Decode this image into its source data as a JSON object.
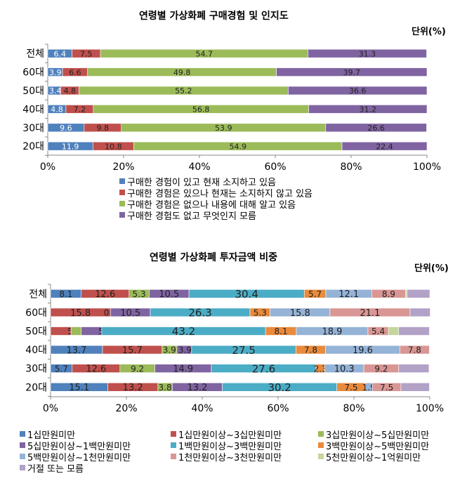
{
  "chart_data": [
    {
      "type": "bar",
      "orientation": "horizontal",
      "stacked": true,
      "title": "연령별 가상화폐 구매경험 및 인지도",
      "unit_label": "단위(%)",
      "categories": [
        "전체",
        "60대",
        "50대",
        "40대",
        "30대",
        "20대"
      ],
      "xlim": [
        0,
        100
      ],
      "x_ticks": [
        "0%",
        "20%",
        "40%",
        "60%",
        "80%",
        "100%"
      ],
      "grid": false,
      "legend_position": "bottom",
      "series": [
        {
          "name": "구매한 경험이 있고 현재 소지하고 있음",
          "color": "#4f81bd",
          "values": [
            6.4,
            3.9,
            3.4,
            4.8,
            9.6,
            11.9
          ],
          "labels": [
            "6.4",
            "3.9",
            "3.4",
            "4.8",
            "9.6",
            "11.9"
          ]
        },
        {
          "name": "구매한 경험은 있으나 현재는 소지하지 않고 있음",
          "color": "#c0504d",
          "values": [
            7.5,
            6.6,
            4.8,
            7.2,
            9.8,
            10.8
          ],
          "labels": [
            "7.5",
            "6.6",
            "4.8",
            "7.2",
            "9.8",
            "10.8"
          ]
        },
        {
          "name": "구매한 경험은 없으나 내용에 대해 알고 있음",
          "color": "#9bbb59",
          "values": [
            54.7,
            49.8,
            55.2,
            56.8,
            53.9,
            54.9
          ],
          "labels": [
            "54.7",
            "49.8",
            "55.2",
            "56.8",
            "53.9",
            "54.9"
          ]
        },
        {
          "name": "구매한 경험도 없고 무엇인지 모름",
          "color": "#8064a2",
          "values": [
            31.3,
            39.7,
            36.6,
            31.2,
            26.6,
            22.4
          ],
          "labels": [
            "31.3",
            "39.7",
            "36.6",
            "31.2",
            "26.6",
            "22.4"
          ]
        }
      ]
    },
    {
      "type": "bar",
      "orientation": "horizontal",
      "stacked": true,
      "title": "연령별 가상화폐 투자금액 비중",
      "unit_label": "단위(%)",
      "categories": [
        "전체",
        "60대",
        "50대",
        "40대",
        "30대",
        "20대"
      ],
      "xlim": [
        0,
        100
      ],
      "x_ticks": [
        "0%",
        "20%",
        "40%",
        "60%",
        "80%",
        "100%"
      ],
      "grid": false,
      "legend_position": "bottom",
      "series": [
        {
          "name": "1십만원미만",
          "color": "#4f81bd",
          "values": [
            8.1,
            0.0,
            0.0,
            13.7,
            5.7,
            15.1
          ],
          "labels": [
            "8.1",
            "0.0",
            "0.0",
            "13.7",
            "5.7",
            "15.1"
          ]
        },
        {
          "name": "1십만원이상~3십만원미만",
          "color": "#c0504d",
          "values": [
            12.6,
            15.8,
            5.4,
            15.7,
            12.6,
            13.2
          ],
          "labels": [
            "12.6",
            "15.8",
            "5.4",
            "15.7",
            "12.6",
            "13.2"
          ]
        },
        {
          "name": "3십만원이상~5십만원미만",
          "color": "#9bbb59",
          "values": [
            5.3,
            0.0,
            2.7,
            3.9,
            9.2,
            3.8
          ],
          "labels": [
            "5.3",
            "0.0",
            "2.7",
            "3.9",
            "9.2",
            "3.8"
          ]
        },
        {
          "name": "5십만원이상~1백만원미만",
          "color": "#8064a2",
          "values": [
            10.5,
            10.5,
            5.4,
            3.9,
            14.9,
            13.2
          ],
          "labels": [
            "10.5",
            "10.5",
            "5.4",
            "3.9",
            "14.9",
            "13.2"
          ]
        },
        {
          "name": "1백만원이상~3백만원미만",
          "color": "#4bacc6",
          "values": [
            30.4,
            26.3,
            43.2,
            27.5,
            27.6,
            30.2
          ],
          "labels": [
            "30.4",
            "26.3",
            "43.2",
            "27.5",
            "27.6",
            "30.2"
          ]
        },
        {
          "name": "3백만원이상~5백만원미만",
          "color": "#e98a3c",
          "values": [
            5.7,
            5.3,
            8.1,
            7.8,
            2.3,
            7.5
          ],
          "labels": [
            "5.7",
            "5.3",
            "8.1",
            "7.8",
            "2.3",
            "7.5"
          ]
        },
        {
          "name": "5백만원이상~1천만원미만",
          "color": "#95b3d7",
          "values": [
            12.1,
            15.8,
            18.9,
            19.6,
            10.3,
            1.9
          ],
          "labels": [
            "12.1",
            "15.8",
            "18.9",
            "19.6",
            "10.3",
            "1.9"
          ]
        },
        {
          "name": "1천만원이상~3천만원미만",
          "color": "#d99694",
          "values": [
            8.9,
            21.1,
            5.4,
            7.8,
            9.2,
            7.5
          ],
          "labels": [
            "8.9",
            "21.1",
            "5.4",
            "7.8",
            "9.2",
            "7.5"
          ]
        },
        {
          "name": "5천만원이상~1억원미만",
          "color": "#c3d69b",
          "values": [
            0.4,
            0.0,
            2.7,
            0.0,
            0.0,
            0.0
          ],
          "labels": [
            "",
            "",
            "",
            "",
            "",
            ""
          ]
        },
        {
          "name": "거절 또는 모름",
          "color": "#b2a2c7",
          "values": [
            6.0,
            5.3,
            8.1,
            0.0,
            8.0,
            7.5
          ],
          "labels": [
            "",
            "",
            "",
            "",
            "",
            ""
          ]
        }
      ]
    }
  ]
}
